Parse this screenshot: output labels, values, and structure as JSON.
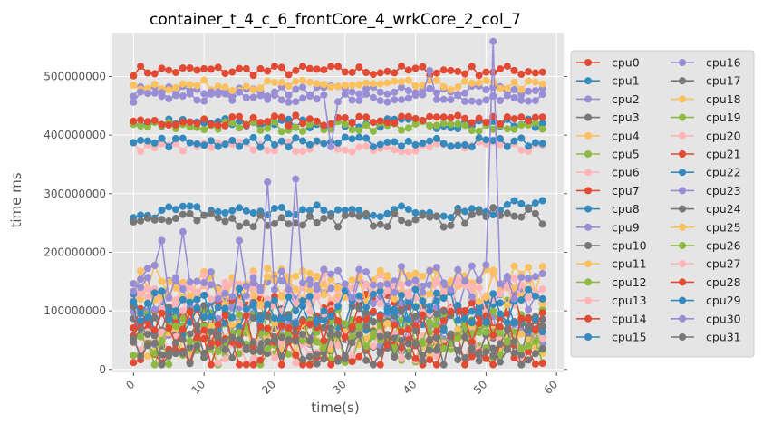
{
  "chart_data": {
    "type": "line",
    "title": "container_t_4_c_6_frontCore_4_wrkCore_2_col_7",
    "xlabel": "time(s)",
    "ylabel": "time ms",
    "xlim": [
      -3,
      61
    ],
    "ylim": [
      -5000000,
      575000000
    ],
    "xticks": [
      0,
      10,
      20,
      30,
      40,
      50,
      60
    ],
    "yticks": [
      0,
      100000000,
      200000000,
      300000000,
      400000000,
      500000000
    ],
    "ytick_labels": [
      "0",
      "100000000",
      "200000000",
      "300000000",
      "400000000",
      "500000000"
    ],
    "grid": true,
    "legend_position": "outside-right",
    "legend_columns": 2,
    "x_range": [
      0,
      58
    ],
    "series": [
      {
        "name": "cpu0",
        "color": "#E24A33",
        "level": 510000000
      },
      {
        "name": "cpu1",
        "color": "#348ABD",
        "level": 420000000
      },
      {
        "name": "cpu2",
        "color": "#988ED5",
        "level": 475000000
      },
      {
        "name": "cpu3",
        "color": "#777777",
        "level": 60000000
      },
      {
        "name": "cpu4",
        "color": "#FBC15E",
        "level": 485000000
      },
      {
        "name": "cpu5",
        "color": "#8EBA42",
        "level": 415000000
      },
      {
        "name": "cpu6",
        "color": "#FFB5B8",
        "level": 380000000
      },
      {
        "name": "cpu7",
        "color": "#E24A33",
        "level": 425000000
      },
      {
        "name": "cpu8",
        "color": "#348ABD",
        "level": 270000000
      },
      {
        "name": "cpu9",
        "color": "#988ED5",
        "level": 70000000
      },
      {
        "name": "cpu10",
        "color": "#777777",
        "level": 255000000
      },
      {
        "name": "cpu11",
        "color": "#FBC15E",
        "level": 148000000
      },
      {
        "name": "cpu12",
        "color": "#8EBA42",
        "level": 90000000
      },
      {
        "name": "cpu13",
        "color": "#FFB5B8",
        "level": 135000000
      },
      {
        "name": "cpu14",
        "color": "#E24A33",
        "level": 100000000
      },
      {
        "name": "cpu15",
        "color": "#348ABD",
        "level": 388000000
      },
      {
        "name": "cpu16",
        "color": "#988ED5",
        "level": 130000000
      },
      {
        "name": "cpu17",
        "color": "#777777",
        "level": 80000000
      },
      {
        "name": "cpu18",
        "color": "#FBC15E",
        "level": 50000000
      },
      {
        "name": "cpu19",
        "color": "#8EBA42",
        "level": 30000000
      },
      {
        "name": "cpu20",
        "color": "#FFB5B8",
        "level": 40000000
      },
      {
        "name": "cpu21",
        "color": "#E24A33",
        "level": 25000000
      },
      {
        "name": "cpu22",
        "color": "#348ABD",
        "level": 90000000
      },
      {
        "name": "cpu23",
        "color": "#988ED5",
        "level": 465000000
      },
      {
        "name": "cpu24",
        "color": "#777777",
        "level": 45000000
      },
      {
        "name": "cpu25",
        "color": "#FBC15E",
        "level": 140000000
      },
      {
        "name": "cpu26",
        "color": "#8EBA42",
        "level": 55000000
      },
      {
        "name": "cpu27",
        "color": "#FFB5B8",
        "level": 120000000
      },
      {
        "name": "cpu28",
        "color": "#E24A33",
        "level": 70000000
      },
      {
        "name": "cpu29",
        "color": "#348ABD",
        "level": 110000000
      },
      {
        "name": "cpu30",
        "color": "#988ED5",
        "level": 150000000
      },
      {
        "name": "cpu31",
        "color": "#777777",
        "level": 35000000
      }
    ]
  }
}
